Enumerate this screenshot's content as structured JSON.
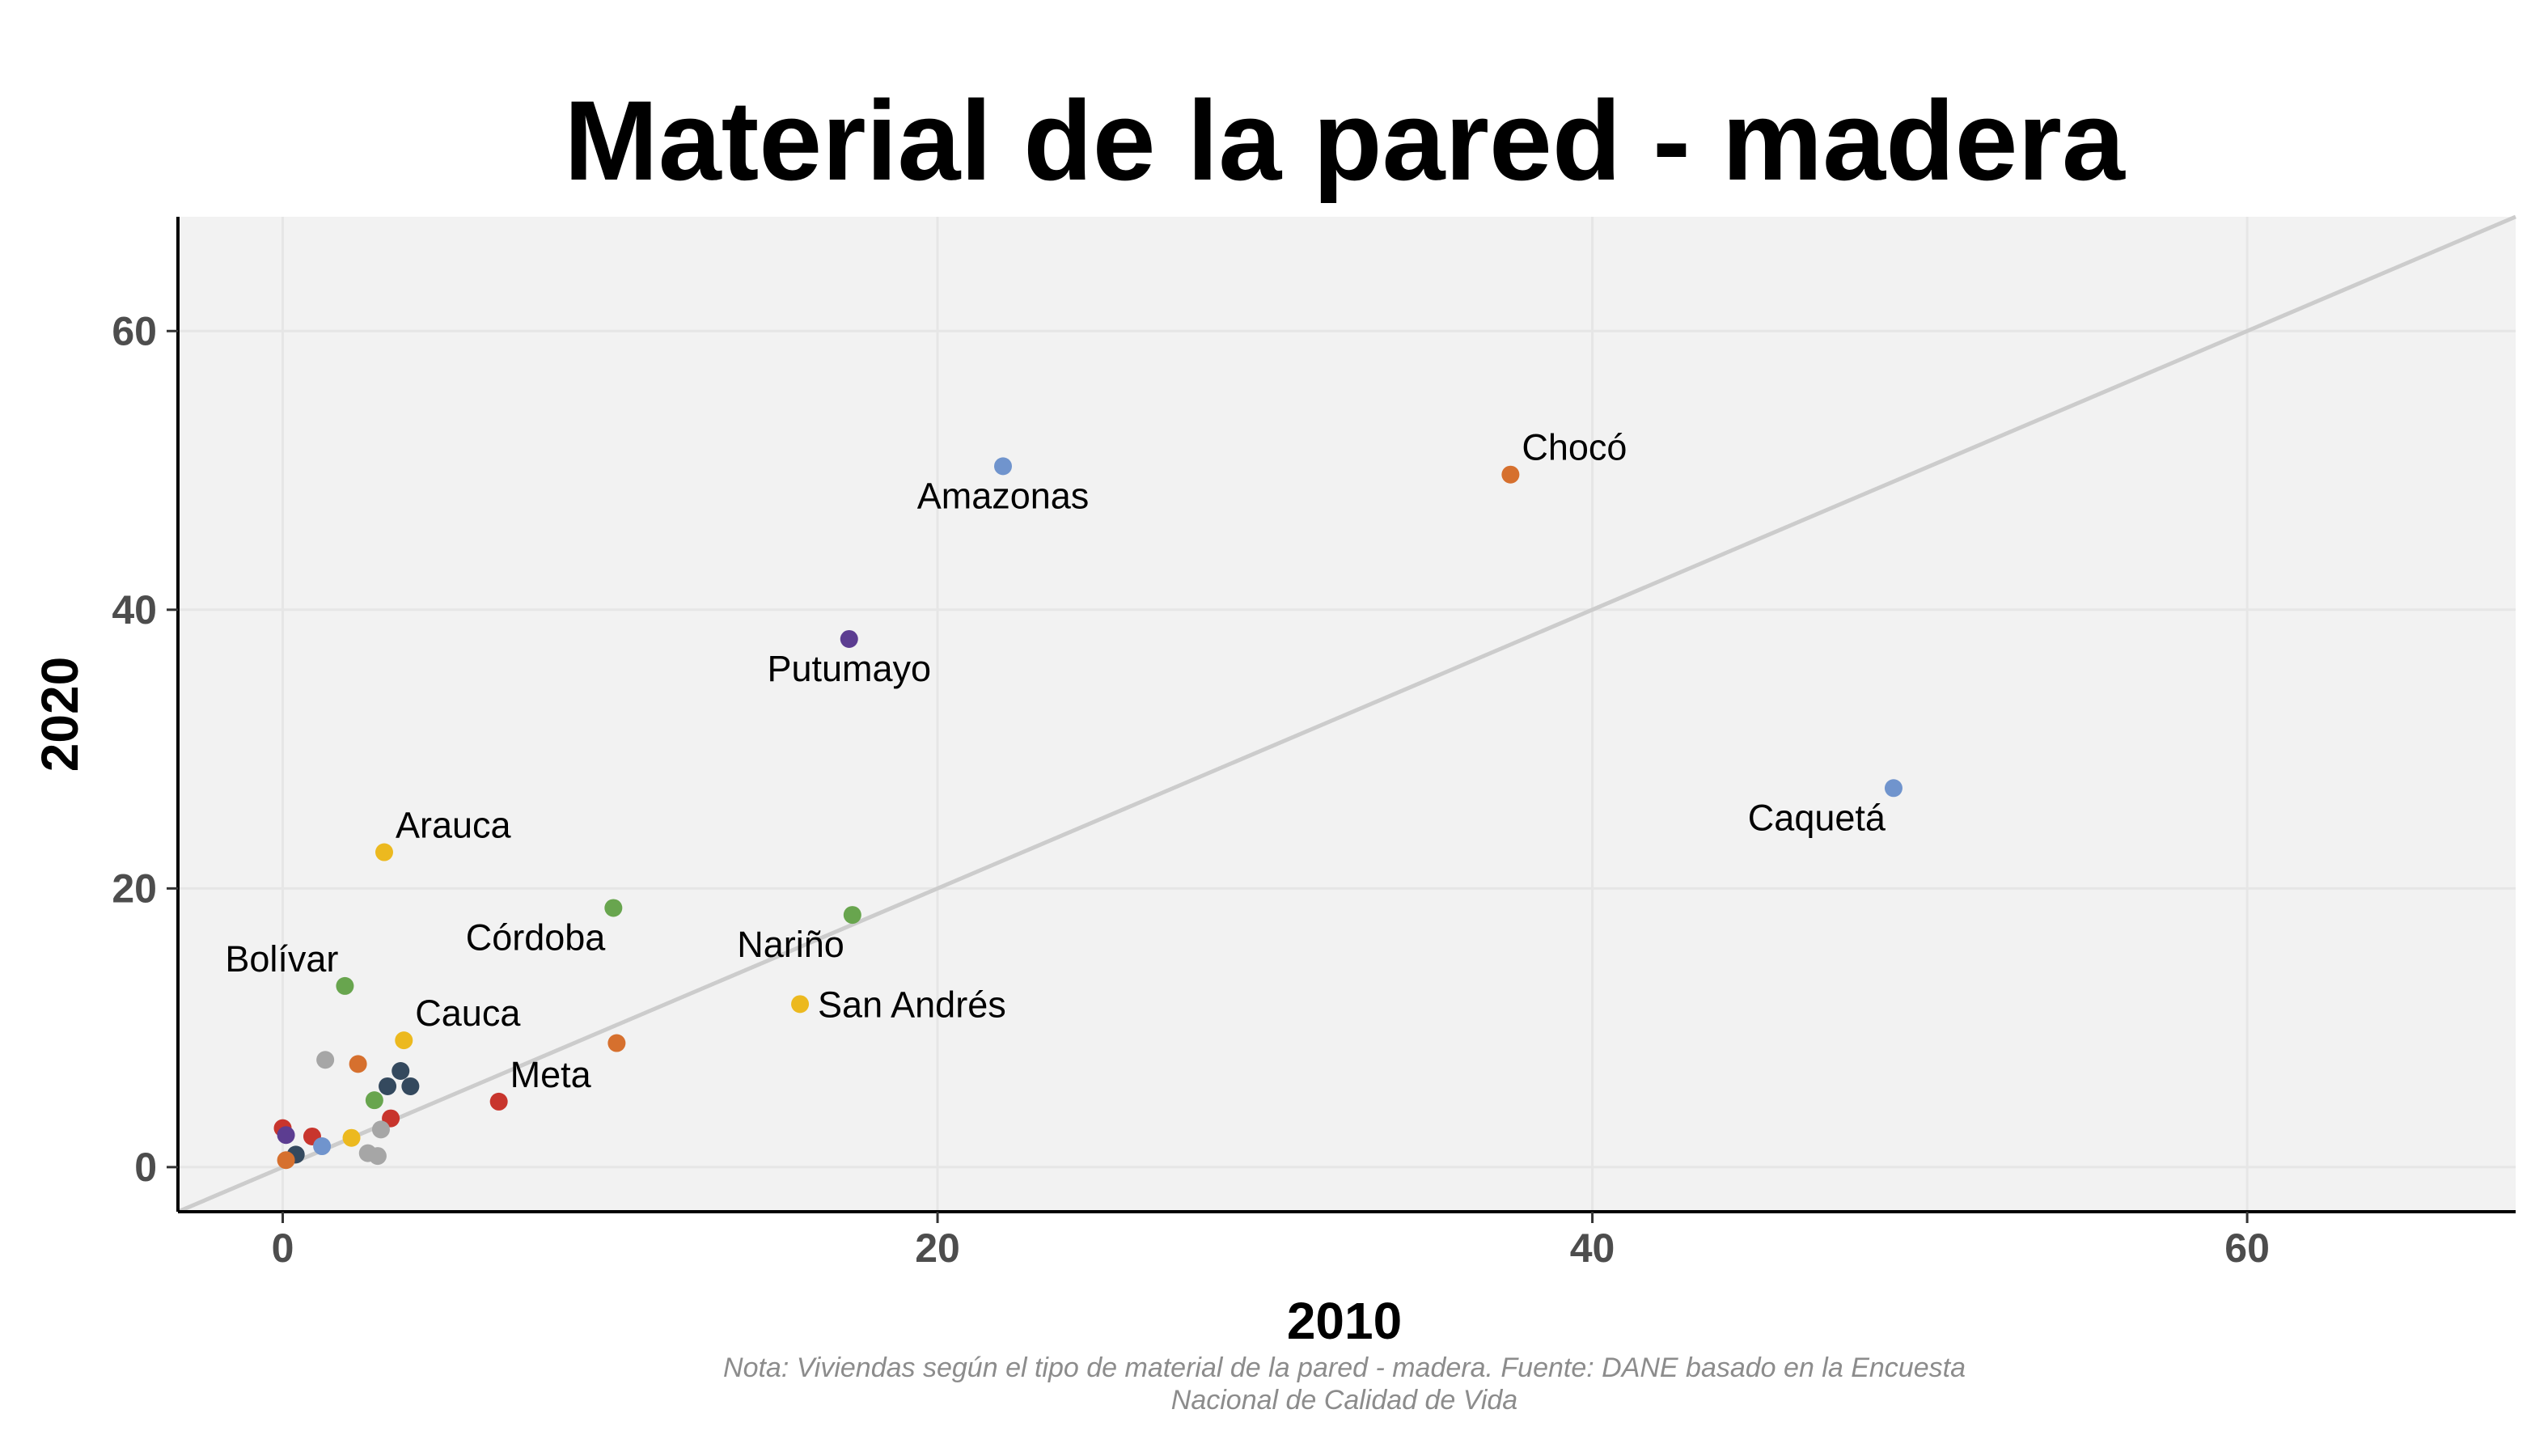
{
  "chart_data": {
    "type": "scatter",
    "title": "Material de la pared - madera",
    "xlabel": "2010",
    "ylabel": "2020",
    "xlim": [
      -3.2,
      68.2
    ],
    "ylim": [
      -3.2,
      68.2
    ],
    "xticks": [
      0,
      20,
      40,
      60
    ],
    "yticks": [
      0,
      20,
      40,
      60
    ],
    "grid": true,
    "reference_line": "y = x",
    "note_line1": "Nota: Viviendas según el tipo de material de la pared - madera. Fuente: DANE basado en la Encuesta",
    "note_line2": "Nacional de Calidad de Vida",
    "colors": {
      "panel": "#f2f2f2",
      "grid": "#e6e6e6",
      "diagonal": "#cccccc",
      "blue": "#7094cd",
      "orange": "#d6702e",
      "purple": "#5c3d91",
      "yellow": "#ecb91f",
      "green": "#68a54e",
      "red": "#c8352d",
      "navy": "#34495e",
      "gray": "#a6a6a6"
    },
    "points": [
      {
        "name": "Amazonas",
        "x": 22.0,
        "y": 50.3,
        "color": "blue",
        "label": "Amazonas",
        "label_pos": "below"
      },
      {
        "name": "Chocó",
        "x": 37.5,
        "y": 49.7,
        "color": "orange",
        "label": "Chocó",
        "label_pos": "above-right"
      },
      {
        "name": "Putumayo",
        "x": 17.3,
        "y": 37.9,
        "color": "purple",
        "label": "Putumayo",
        "label_pos": "below"
      },
      {
        "name": "Caquetá",
        "x": 49.2,
        "y": 27.2,
        "color": "blue",
        "label": "Caquetá",
        "label_pos": "below-left"
      },
      {
        "name": "Arauca",
        "x": 3.1,
        "y": 22.6,
        "color": "yellow",
        "label": "Arauca",
        "label_pos": "above-right"
      },
      {
        "name": "Córdoba",
        "x": 10.1,
        "y": 18.6,
        "color": "green",
        "label": "Córdoba",
        "label_pos": "below-left"
      },
      {
        "name": "Nariño",
        "x": 17.4,
        "y": 18.1,
        "color": "green",
        "label": "Nariño",
        "label_pos": "below-left"
      },
      {
        "name": "Bolívar",
        "x": 1.9,
        "y": 13.0,
        "color": "green",
        "label": "Bolívar",
        "label_pos": "above-left"
      },
      {
        "name": "San Andrés",
        "x": 15.8,
        "y": 11.7,
        "color": "yellow",
        "label": "San Andrés",
        "label_pos": "right"
      },
      {
        "name": "Cauca",
        "x": 3.7,
        "y": 9.1,
        "color": "yellow",
        "label": "Cauca",
        "label_pos": "above-right"
      },
      {
        "name": "Meta",
        "x": 6.6,
        "y": 4.7,
        "color": "red",
        "label": "Meta",
        "label_pos": "above-right"
      },
      {
        "name": "",
        "x": 10.2,
        "y": 8.9,
        "color": "orange",
        "label": ""
      },
      {
        "name": "",
        "x": 1.3,
        "y": 7.7,
        "color": "gray",
        "label": ""
      },
      {
        "name": "",
        "x": 2.3,
        "y": 7.4,
        "color": "orange",
        "label": ""
      },
      {
        "name": "",
        "x": 3.6,
        "y": 6.9,
        "color": "navy",
        "label": ""
      },
      {
        "name": "",
        "x": 3.2,
        "y": 5.8,
        "color": "navy",
        "label": ""
      },
      {
        "name": "",
        "x": 3.9,
        "y": 5.8,
        "color": "navy",
        "label": ""
      },
      {
        "name": "",
        "x": 2.8,
        "y": 4.8,
        "color": "green",
        "label": ""
      },
      {
        "name": "",
        "x": 3.3,
        "y": 3.5,
        "color": "red",
        "label": ""
      },
      {
        "name": "",
        "x": 3.0,
        "y": 2.7,
        "color": "gray",
        "label": ""
      },
      {
        "name": "",
        "x": 0.0,
        "y": 2.8,
        "color": "red",
        "label": ""
      },
      {
        "name": "",
        "x": 0.1,
        "y": 2.3,
        "color": "purple",
        "label": ""
      },
      {
        "name": "",
        "x": 0.9,
        "y": 2.2,
        "color": "red",
        "label": ""
      },
      {
        "name": "",
        "x": 2.1,
        "y": 2.1,
        "color": "yellow",
        "label": ""
      },
      {
        "name": "",
        "x": 1.2,
        "y": 1.5,
        "color": "blue",
        "label": ""
      },
      {
        "name": "",
        "x": 0.4,
        "y": 0.9,
        "color": "navy",
        "label": ""
      },
      {
        "name": "",
        "x": 2.6,
        "y": 1.0,
        "color": "gray",
        "label": ""
      },
      {
        "name": "",
        "x": 2.9,
        "y": 0.8,
        "color": "gray",
        "label": ""
      },
      {
        "name": "",
        "x": 0.1,
        "y": 0.5,
        "color": "orange",
        "label": ""
      }
    ]
  }
}
